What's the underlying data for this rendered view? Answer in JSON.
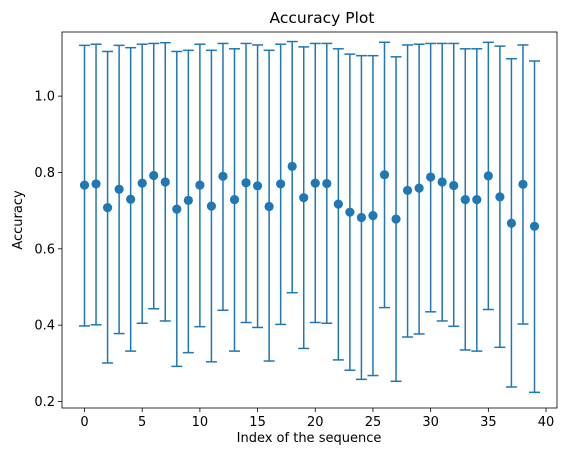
{
  "chart_data": {
    "type": "scatter",
    "title": "Accuracy Plot",
    "xlabel": "Index of the sequence",
    "ylabel": "Accuracy",
    "xlim": [
      -1.95,
      40.95
    ],
    "ylim": [
      0.183,
      1.168
    ],
    "xticks": [
      0,
      5,
      10,
      15,
      20,
      25,
      30,
      35,
      40
    ],
    "yticks": [
      0.2,
      0.4,
      0.6,
      0.8,
      1.0
    ],
    "ytick_labels": [
      "0.2",
      "0.4",
      "0.6",
      "0.8",
      "1.0"
    ],
    "grid": false,
    "legend": "none",
    "marker_color": "#1f77b4",
    "points": [
      {
        "x": 0,
        "y": 0.767,
        "ylow": 0.398,
        "yhigh": 1.133
      },
      {
        "x": 1,
        "y": 0.77,
        "ylow": 0.401,
        "yhigh": 1.136
      },
      {
        "x": 2,
        "y": 0.708,
        "ylow": 0.301,
        "yhigh": 1.117
      },
      {
        "x": 3,
        "y": 0.756,
        "ylow": 0.378,
        "yhigh": 1.133
      },
      {
        "x": 4,
        "y": 0.73,
        "ylow": 0.332,
        "yhigh": 1.127
      },
      {
        "x": 5,
        "y": 0.772,
        "ylow": 0.405,
        "yhigh": 1.136
      },
      {
        "x": 6,
        "y": 0.792,
        "ylow": 0.443,
        "yhigh": 1.138
      },
      {
        "x": 7,
        "y": 0.775,
        "ylow": 0.411,
        "yhigh": 1.14
      },
      {
        "x": 8,
        "y": 0.704,
        "ylow": 0.292,
        "yhigh": 1.117
      },
      {
        "x": 9,
        "y": 0.727,
        "ylow": 0.328,
        "yhigh": 1.12
      },
      {
        "x": 10,
        "y": 0.767,
        "ylow": 0.396,
        "yhigh": 1.136
      },
      {
        "x": 11,
        "y": 0.712,
        "ylow": 0.304,
        "yhigh": 1.12
      },
      {
        "x": 12,
        "y": 0.79,
        "ylow": 0.439,
        "yhigh": 1.138
      },
      {
        "x": 13,
        "y": 0.729,
        "ylow": 0.332,
        "yhigh": 1.124
      },
      {
        "x": 14,
        "y": 0.773,
        "ylow": 0.407,
        "yhigh": 1.138
      },
      {
        "x": 15,
        "y": 0.765,
        "ylow": 0.394,
        "yhigh": 1.134
      },
      {
        "x": 16,
        "y": 0.711,
        "ylow": 0.306,
        "yhigh": 1.12
      },
      {
        "x": 17,
        "y": 0.77,
        "ylow": 0.402,
        "yhigh": 1.136
      },
      {
        "x": 18,
        "y": 0.816,
        "ylow": 0.485,
        "yhigh": 1.143
      },
      {
        "x": 19,
        "y": 0.734,
        "ylow": 0.339,
        "yhigh": 1.129
      },
      {
        "x": 20,
        "y": 0.772,
        "ylow": 0.407,
        "yhigh": 1.138
      },
      {
        "x": 21,
        "y": 0.771,
        "ylow": 0.405,
        "yhigh": 1.138
      },
      {
        "x": 22,
        "y": 0.717,
        "ylow": 0.309,
        "yhigh": 1.124
      },
      {
        "x": 23,
        "y": 0.696,
        "ylow": 0.282,
        "yhigh": 1.11
      },
      {
        "x": 24,
        "y": 0.682,
        "ylow": 0.258,
        "yhigh": 1.106
      },
      {
        "x": 25,
        "y": 0.687,
        "ylow": 0.268,
        "yhigh": 1.106
      },
      {
        "x": 26,
        "y": 0.794,
        "ylow": 0.446,
        "yhigh": 1.141
      },
      {
        "x": 27,
        "y": 0.678,
        "ylow": 0.253,
        "yhigh": 1.103
      },
      {
        "x": 28,
        "y": 0.753,
        "ylow": 0.369,
        "yhigh": 1.134
      },
      {
        "x": 29,
        "y": 0.759,
        "ylow": 0.377,
        "yhigh": 1.136
      },
      {
        "x": 30,
        "y": 0.788,
        "ylow": 0.435,
        "yhigh": 1.138
      },
      {
        "x": 31,
        "y": 0.775,
        "ylow": 0.411,
        "yhigh": 1.138
      },
      {
        "x": 32,
        "y": 0.766,
        "ylow": 0.397,
        "yhigh": 1.138
      },
      {
        "x": 33,
        "y": 0.729,
        "ylow": 0.335,
        "yhigh": 1.124
      },
      {
        "x": 34,
        "y": 0.729,
        "ylow": 0.332,
        "yhigh": 1.124
      },
      {
        "x": 35,
        "y": 0.791,
        "ylow": 0.441,
        "yhigh": 1.141
      },
      {
        "x": 36,
        "y": 0.736,
        "ylow": 0.342,
        "yhigh": 1.131
      },
      {
        "x": 37,
        "y": 0.667,
        "ylow": 0.238,
        "yhigh": 1.098
      },
      {
        "x": 38,
        "y": 0.769,
        "ylow": 0.403,
        "yhigh": 1.134
      },
      {
        "x": 39,
        "y": 0.659,
        "ylow": 0.224,
        "yhigh": 1.092
      }
    ]
  }
}
